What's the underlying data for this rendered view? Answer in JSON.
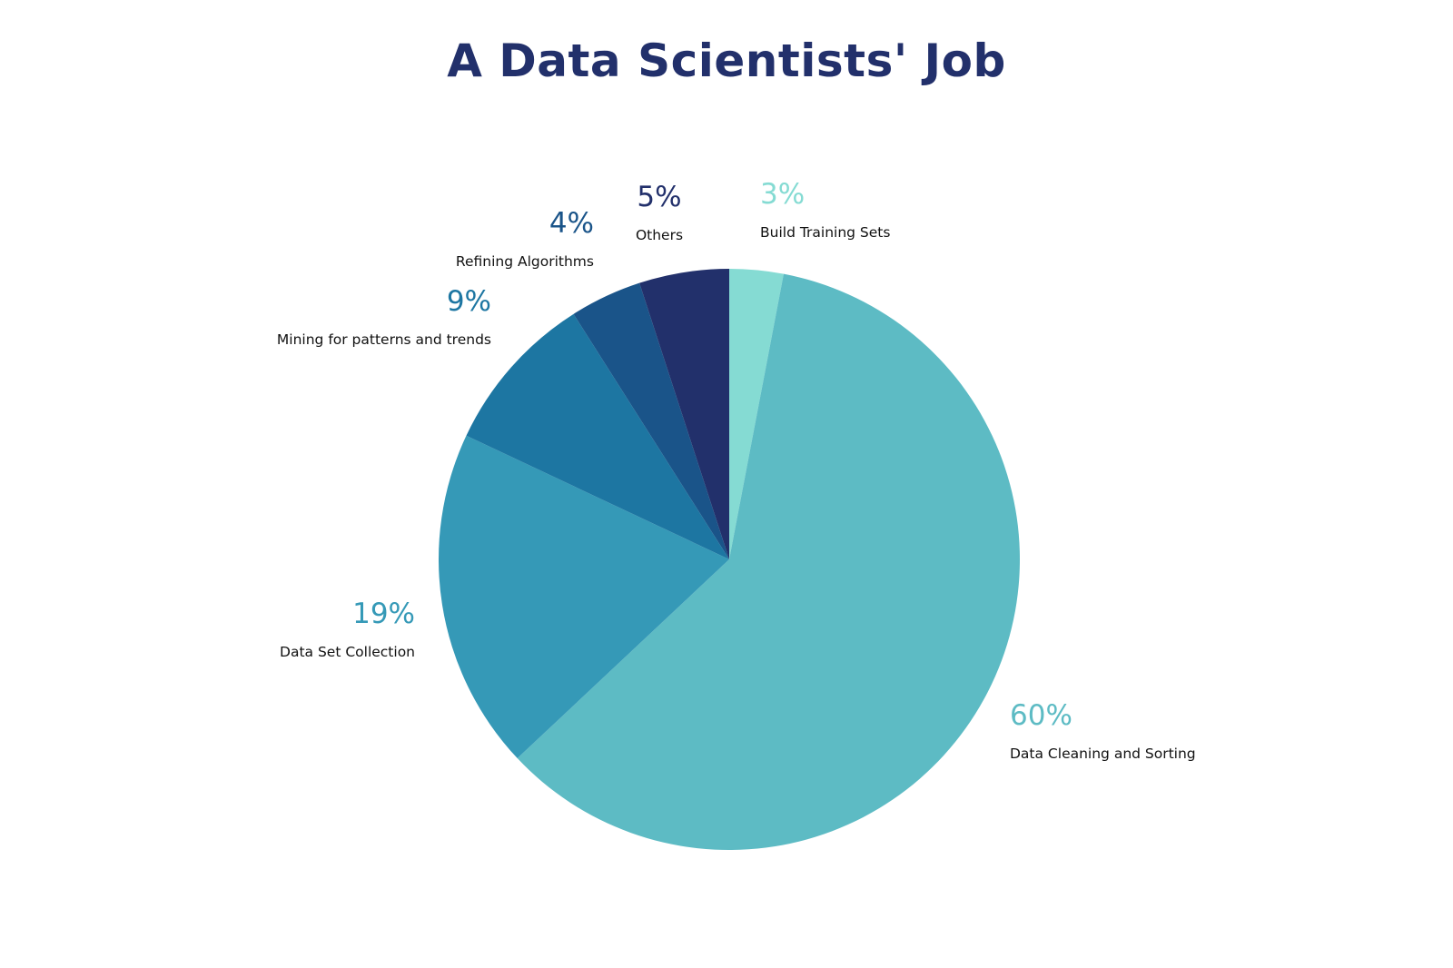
{
  "chart_data": {
    "type": "pie",
    "title": "A Data Scientists' Job",
    "start_angle": "12 o'clock",
    "direction": "clockwise",
    "slices": [
      {
        "name": "Build Training Sets",
        "value": 3,
        "label": "3%",
        "color": "#85dbd3"
      },
      {
        "name": "Data Cleaning and Sorting",
        "value": 60,
        "label": "60%",
        "color": "#5dbbc4"
      },
      {
        "name": "Data Set Collection",
        "value": 19,
        "label": "19%",
        "color": "#3599b7"
      },
      {
        "name": "Mining for patterns and trends",
        "value": 9,
        "label": "9%",
        "color": "#1d76a2"
      },
      {
        "name": "Refining Algorithms",
        "value": 4,
        "label": "4%",
        "color": "#1a5489"
      },
      {
        "name": "Others",
        "value": 5,
        "label": "5%",
        "color": "#22306b"
      }
    ]
  }
}
